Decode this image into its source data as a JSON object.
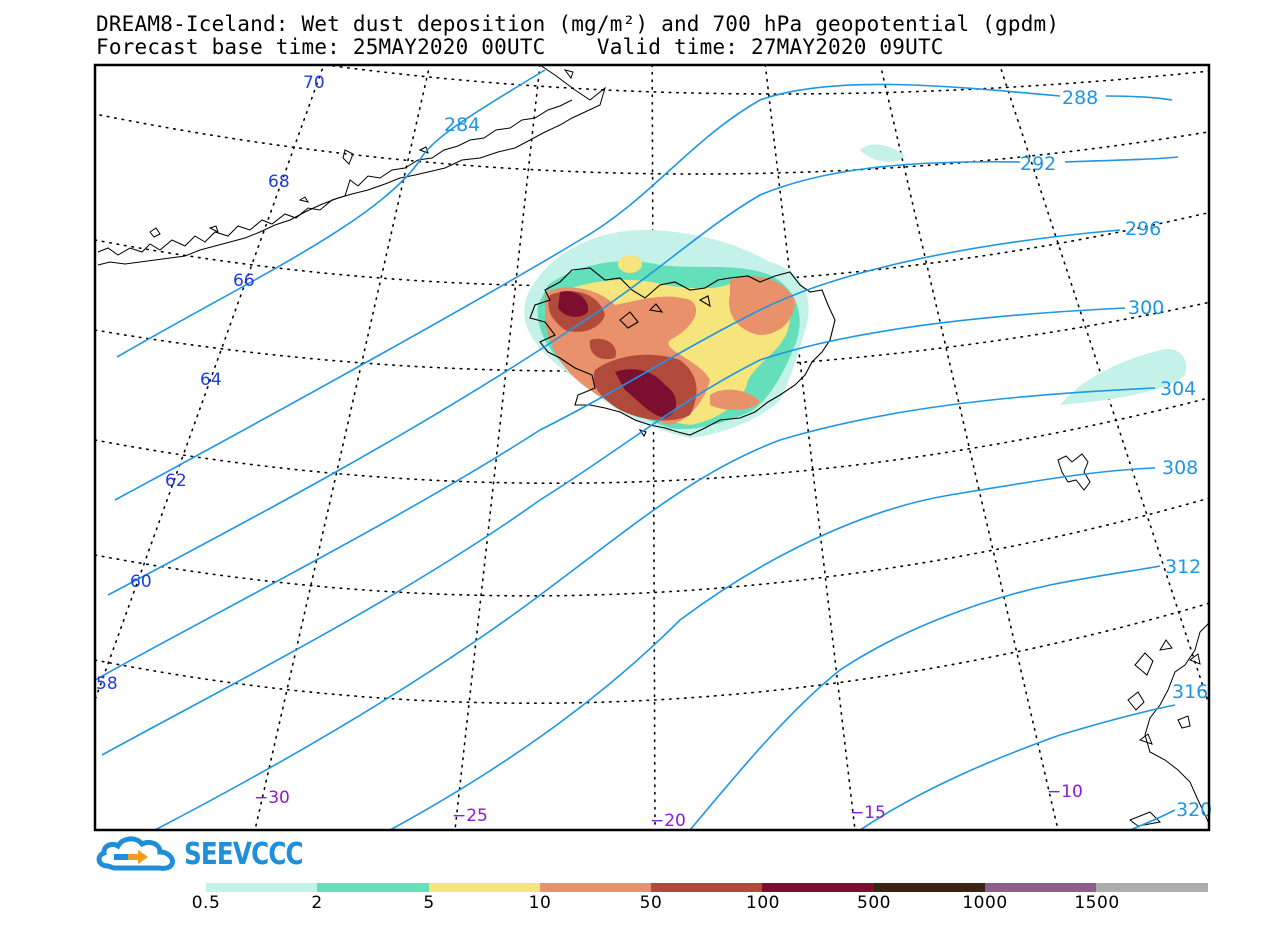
{
  "title": {
    "line1": "DREAM8-Iceland: Wet dust deposition (mg/m²) and 700 hPa geopotential (gpdm)",
    "line2": "Forecast base time: 25MAY2020 00UTC    Valid time: 27MAY2020 09UTC"
  },
  "logo": {
    "text": "SEEVCCC",
    "icon": "cloud-arrow-icon"
  },
  "colors": {
    "frame": "#000000",
    "contour": "#1e96e6",
    "lat_label": "#1f3be0",
    "lon_label": "#8a1ad6",
    "coast": "#000000"
  },
  "contour_labels": [
    "284",
    "288",
    "292",
    "296",
    "300",
    "304",
    "308",
    "312",
    "316",
    "320"
  ],
  "lat_labels": [
    "70",
    "68",
    "66",
    "64",
    "62",
    "60",
    "58"
  ],
  "lon_labels": [
    "−30",
    "−25",
    "−20",
    "−15",
    "−10"
  ],
  "legend": {
    "colors": [
      "#c4f2e8",
      "#63dfb9",
      "#f6e47d",
      "#e8916a",
      "#b24a3c",
      "#7c0f30",
      "#3b2414",
      "#8e5f8c",
      "#adadad"
    ],
    "labels": [
      "0.5",
      "2",
      "5",
      "10",
      "50",
      "100",
      "500",
      "1000",
      "1500"
    ]
  }
}
